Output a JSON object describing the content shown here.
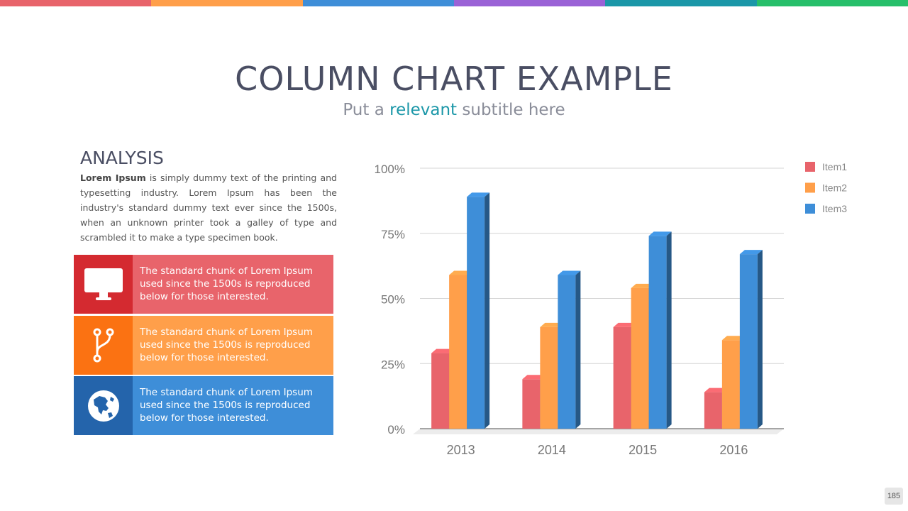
{
  "top_bar_colors": [
    "#e8646b",
    "#ff9f4a",
    "#3e8ed8",
    "#9a62d6",
    "#1b97a8",
    "#27bf6a"
  ],
  "header": {
    "title": "COLUMN CHART EXAMPLE",
    "subtitle_prefix": "Put a ",
    "subtitle_highlight": "relevant",
    "subtitle_suffix": " subtitle here"
  },
  "analysis": {
    "heading": "ANALYSIS",
    "lead_bold": "Lorem Ipsum",
    "body": " is simply dummy text of the printing and typesetting industry. Lorem Ipsum has been the industry's standard dummy text ever since the 1500s, when an unknown printer took a galley of type and scrambled it to make a type specimen book."
  },
  "cards": [
    {
      "icon": "monitor-icon",
      "text": "The standard chunk of Lorem Ipsum used since the 1500s is reproduced below for those interested.",
      "icon_bg": "#d42a30",
      "bg": "#e8646b"
    },
    {
      "icon": "git-branch-icon",
      "text": "The standard chunk of Lorem Ipsum used since the 1500s is reproduced below for those interested.",
      "icon_bg": "#fb7212",
      "bg": "#ff9f4a"
    },
    {
      "icon": "globe-icon",
      "text": "The standard chunk of Lorem Ipsum used since the 1500s is reproduced below for those interested.",
      "icon_bg": "#2464ab",
      "bg": "#3e8ed8"
    }
  ],
  "chart_data": {
    "type": "bar",
    "categories": [
      "2013",
      "2014",
      "2015",
      "2016"
    ],
    "series": [
      {
        "name": "Item1",
        "values": [
          29,
          19,
          39,
          14
        ],
        "color": "#e8646b"
      },
      {
        "name": "Item2",
        "values": [
          59,
          39,
          54,
          34
        ],
        "color": "#ff9f4a"
      },
      {
        "name": "Item3",
        "values": [
          89,
          59,
          74,
          67
        ],
        "color": "#3e8ed8"
      }
    ],
    "ylim": [
      0,
      100
    ],
    "yticks": [
      "0%",
      "25%",
      "50%",
      "75%",
      "100%"
    ],
    "ytick_values": [
      0,
      25,
      50,
      75,
      100
    ],
    "grid": true,
    "legend": "right",
    "style": "3d"
  },
  "page_number": "185"
}
